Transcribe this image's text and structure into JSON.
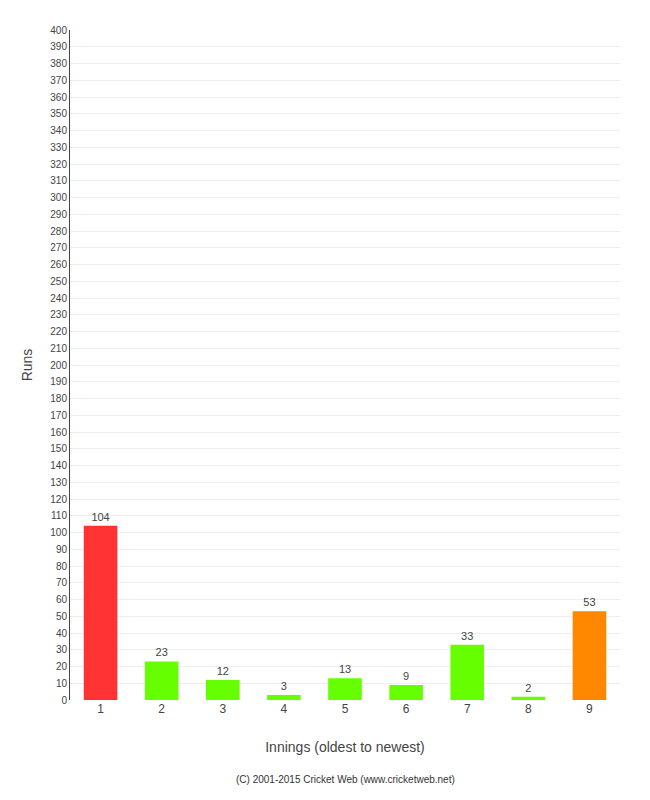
{
  "chart_data": {
    "type": "bar",
    "xlabel": "Innings (oldest to newest)",
    "ylabel": "Runs",
    "categories": [
      "1",
      "2",
      "3",
      "4",
      "5",
      "6",
      "7",
      "8",
      "9"
    ],
    "values": [
      104,
      23,
      12,
      3,
      13,
      9,
      33,
      2,
      53
    ],
    "colors": [
      "#ff3333",
      "#66ff00",
      "#66ff00",
      "#66ff00",
      "#66ff00",
      "#66ff00",
      "#66ff00",
      "#66ff00",
      "#ff8800"
    ],
    "ylim": [
      0,
      400
    ],
    "yticks": [
      0,
      10,
      20,
      30,
      40,
      50,
      60,
      70,
      80,
      90,
      100,
      110,
      120,
      130,
      140,
      150,
      160,
      170,
      180,
      190,
      200,
      210,
      220,
      230,
      240,
      250,
      260,
      270,
      280,
      290,
      300,
      310,
      320,
      330,
      340,
      350,
      360,
      370,
      380,
      390,
      400
    ],
    "grid": true,
    "data_labels": true,
    "annotations": [
      "(C) 2001-2015 Cricket Web (www.cricketweb.net)"
    ]
  }
}
